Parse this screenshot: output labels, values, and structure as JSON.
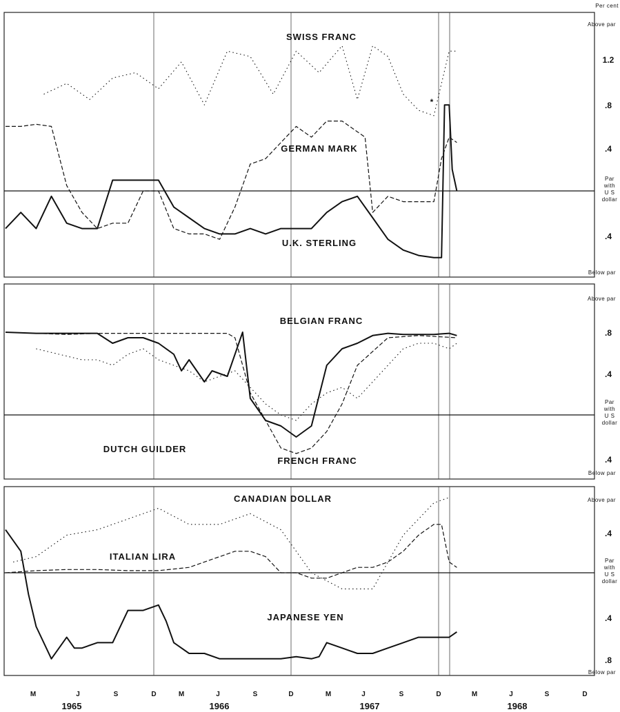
{
  "chart_data": [
    {
      "type": "line",
      "unit_label": "Per cent",
      "upper_label": "Above par",
      "lower_label": "Below par",
      "par_label": [
        "Par",
        "with",
        "U S",
        "dollar"
      ],
      "y_ticks_above": [
        "1.2",
        ".8",
        ".4"
      ],
      "y_ticks_below": [
        ".4"
      ],
      "ylim": [
        -0.8,
        1.6
      ],
      "series": [
        {
          "name": "SWISS FRANC",
          "style": "dotted",
          "x": [
            1965.25,
            1965.4,
            1965.55,
            1965.7,
            1965.85,
            1966.0,
            1966.15,
            1966.3,
            1966.45,
            1966.6,
            1966.75,
            1966.9,
            1967.05,
            1967.2,
            1967.3,
            1967.4,
            1967.5,
            1967.6,
            1967.7,
            1967.8,
            1967.9,
            1967.95
          ],
          "values": [
            0.9,
            1.0,
            0.85,
            1.05,
            1.1,
            0.95,
            1.2,
            0.8,
            1.3,
            1.25,
            0.9,
            1.3,
            1.1,
            1.35,
            0.85,
            1.35,
            1.25,
            0.9,
            0.75,
            0.7,
            1.3,
            1.3
          ]
        },
        {
          "name": "GERMAN MARK",
          "style": "dashed",
          "x": [
            1965.0,
            1965.1,
            1965.2,
            1965.3,
            1965.4,
            1965.5,
            1965.6,
            1965.7,
            1965.8,
            1965.9,
            1966.0,
            1966.1,
            1966.2,
            1966.3,
            1966.4,
            1966.5,
            1966.6,
            1966.7,
            1966.8,
            1966.9,
            1967.0,
            1967.1,
            1967.2,
            1967.3,
            1967.35,
            1967.4,
            1967.5,
            1967.6,
            1967.7,
            1967.8,
            1967.85,
            1967.9,
            1967.95
          ],
          "values": [
            0.6,
            0.6,
            0.62,
            0.6,
            0.05,
            -0.2,
            -0.35,
            -0.3,
            -0.3,
            0.0,
            0.0,
            -0.35,
            -0.4,
            -0.4,
            -0.45,
            -0.15,
            0.25,
            0.3,
            0.45,
            0.6,
            0.5,
            0.65,
            0.65,
            0.55,
            0.5,
            -0.2,
            -0.05,
            -0.1,
            -0.1,
            -0.1,
            0.3,
            0.5,
            0.45
          ]
        },
        {
          "name": "U.K. STERLING",
          "style": "solid",
          "x": [
            1965.0,
            1965.1,
            1965.2,
            1965.3,
            1965.4,
            1965.5,
            1965.6,
            1965.7,
            1965.8,
            1965.9,
            1966.0,
            1966.1,
            1966.2,
            1966.3,
            1966.4,
            1966.5,
            1966.6,
            1966.7,
            1966.8,
            1966.9,
            1967.0,
            1967.1,
            1967.2,
            1967.3,
            1967.4,
            1967.5,
            1967.6,
            1967.7,
            1967.8,
            1967.85,
            1967.87,
            1967.9,
            1967.92,
            1967.95
          ],
          "values": [
            -0.35,
            -0.2,
            -0.35,
            -0.05,
            -0.3,
            -0.35,
            -0.35,
            0.1,
            0.1,
            0.1,
            0.1,
            -0.15,
            -0.25,
            -0.35,
            -0.4,
            -0.4,
            -0.35,
            -0.4,
            -0.35,
            -0.35,
            -0.35,
            -0.2,
            -0.1,
            -0.05,
            -0.25,
            -0.45,
            -0.55,
            -0.6,
            -0.62,
            -0.62,
            0.8,
            0.8,
            0.2,
            0.0
          ]
        }
      ],
      "annotation": "*"
    },
    {
      "type": "line",
      "upper_label": "Above par",
      "lower_label": "Below par",
      "par_label": [
        "Par",
        "with",
        "U S",
        "dollar"
      ],
      "y_ticks_above": [
        ".8",
        ".4"
      ],
      "y_ticks_below": [
        ".4"
      ],
      "ylim": [
        -0.6,
        1.2
      ],
      "series": [
        {
          "name": "BELGIAN FRANC",
          "style": "dashed",
          "x": [
            1965.0,
            1965.2,
            1965.4,
            1965.6,
            1965.8,
            1966.0,
            1966.2,
            1966.35,
            1966.45,
            1966.5,
            1966.6,
            1966.7,
            1966.8,
            1966.9,
            1967.0,
            1967.1,
            1967.2,
            1967.3,
            1967.5,
            1967.7,
            1967.95
          ],
          "values": [
            0.75,
            0.74,
            0.73,
            0.74,
            0.74,
            0.74,
            0.74,
            0.74,
            0.74,
            0.7,
            0.2,
            -0.05,
            -0.3,
            -0.35,
            -0.3,
            -0.15,
            0.1,
            0.45,
            0.7,
            0.72,
            0.7
          ]
        },
        {
          "name": "DUTCH GUILDER",
          "style": "dotted",
          "x": [
            1965.2,
            1965.35,
            1965.5,
            1965.6,
            1965.7,
            1965.8,
            1965.9,
            1966.0,
            1966.2,
            1966.3,
            1966.4,
            1966.5,
            1966.6,
            1966.7,
            1966.8,
            1966.9,
            1967.0,
            1967.1,
            1967.2,
            1967.3,
            1967.4,
            1967.5,
            1967.6,
            1967.7,
            1967.8,
            1967.9,
            1967.95
          ],
          "values": [
            0.6,
            0.55,
            0.5,
            0.5,
            0.45,
            0.55,
            0.6,
            0.5,
            0.4,
            0.3,
            0.35,
            0.4,
            0.25,
            0.1,
            0.0,
            -0.05,
            0.1,
            0.2,
            0.25,
            0.15,
            0.3,
            0.45,
            0.6,
            0.65,
            0.65,
            0.6,
            0.65
          ]
        },
        {
          "name": "FRENCH FRANC",
          "style": "solid",
          "x": [
            1965.0,
            1965.2,
            1965.4,
            1965.6,
            1965.7,
            1965.8,
            1965.9,
            1966.0,
            1966.1,
            1966.15,
            1966.2,
            1966.3,
            1966.35,
            1966.45,
            1966.55,
            1966.6,
            1966.7,
            1966.8,
            1966.9,
            1966.95,
            1967.0,
            1967.1,
            1967.2,
            1967.3,
            1967.4,
            1967.5,
            1967.6,
            1967.7,
            1967.8,
            1967.9,
            1967.95
          ],
          "values": [
            0.75,
            0.74,
            0.74,
            0.74,
            0.65,
            0.7,
            0.7,
            0.65,
            0.55,
            0.4,
            0.5,
            0.3,
            0.4,
            0.35,
            0.75,
            0.15,
            -0.05,
            -0.1,
            -0.2,
            -0.15,
            -0.1,
            0.45,
            0.6,
            0.65,
            0.72,
            0.74,
            0.73,
            0.73,
            0.73,
            0.74,
            0.72
          ]
        }
      ]
    },
    {
      "type": "line",
      "upper_label": "Above par",
      "lower_label": "Below par",
      "par_label": [
        "Par",
        "with",
        "U S",
        "dollar"
      ],
      "y_ticks_above": [
        ".4"
      ],
      "y_ticks_below": [
        ".4",
        ".8"
      ],
      "ylim": [
        -0.95,
        0.8
      ],
      "series": [
        {
          "name": "CANADIAN DOLLAR",
          "style": "dotted",
          "x": [
            1965.05,
            1965.2,
            1965.4,
            1965.6,
            1965.8,
            1966.0,
            1966.2,
            1966.4,
            1966.6,
            1966.8,
            1967.0,
            1967.2,
            1967.4,
            1967.6,
            1967.8,
            1967.9
          ],
          "values": [
            0.1,
            0.15,
            0.35,
            0.4,
            0.5,
            0.6,
            0.45,
            0.45,
            0.55,
            0.4,
            0.0,
            -0.15,
            -0.15,
            0.35,
            0.65,
            0.7
          ]
        },
        {
          "name": "ITALIAN LIRA",
          "style": "dashed",
          "x": [
            1965.0,
            1965.2,
            1965.4,
            1965.6,
            1965.8,
            1966.0,
            1966.2,
            1966.4,
            1966.5,
            1966.6,
            1966.7,
            1966.8,
            1966.9,
            1967.0,
            1967.1,
            1967.2,
            1967.3,
            1967.4,
            1967.5,
            1967.6,
            1967.7,
            1967.8,
            1967.85,
            1967.9,
            1967.95
          ],
          "values": [
            0.0,
            0.02,
            0.03,
            0.03,
            0.02,
            0.02,
            0.05,
            0.15,
            0.2,
            0.2,
            0.15,
            0.0,
            0.0,
            -0.05,
            -0.05,
            0.0,
            0.05,
            0.05,
            0.1,
            0.2,
            0.35,
            0.45,
            0.45,
            0.1,
            0.05
          ]
        },
        {
          "name": "JAPANESE YEN",
          "style": "solid",
          "x": [
            1965.0,
            1965.05,
            1965.1,
            1965.15,
            1965.2,
            1965.3,
            1965.4,
            1965.45,
            1965.5,
            1965.6,
            1965.7,
            1965.8,
            1965.9,
            1966.0,
            1966.05,
            1966.1,
            1966.2,
            1966.3,
            1966.4,
            1966.5,
            1966.6,
            1966.7,
            1966.8,
            1966.9,
            1967.0,
            1967.05,
            1967.1,
            1967.2,
            1967.3,
            1967.4,
            1967.5,
            1967.6,
            1967.7,
            1967.8,
            1967.9,
            1967.95
          ],
          "values": [
            0.4,
            0.3,
            0.2,
            -0.2,
            -0.5,
            -0.8,
            -0.6,
            -0.7,
            -0.7,
            -0.65,
            -0.65,
            -0.35,
            -0.35,
            -0.3,
            -0.45,
            -0.65,
            -0.75,
            -0.75,
            -0.8,
            -0.8,
            -0.8,
            -0.8,
            -0.8,
            -0.78,
            -0.8,
            -0.78,
            -0.65,
            -0.7,
            -0.75,
            -0.75,
            -0.7,
            -0.65,
            -0.6,
            -0.6,
            -0.6,
            -0.55
          ]
        }
      ]
    }
  ],
  "x_axis": {
    "months": [
      "M",
      "J",
      "S",
      "D",
      "M",
      "J",
      "S",
      "D",
      "M",
      "J",
      "S",
      "D",
      "M",
      "J",
      "S",
      "D"
    ],
    "years": [
      "1965",
      "1966",
      "1967",
      "1968"
    ]
  }
}
